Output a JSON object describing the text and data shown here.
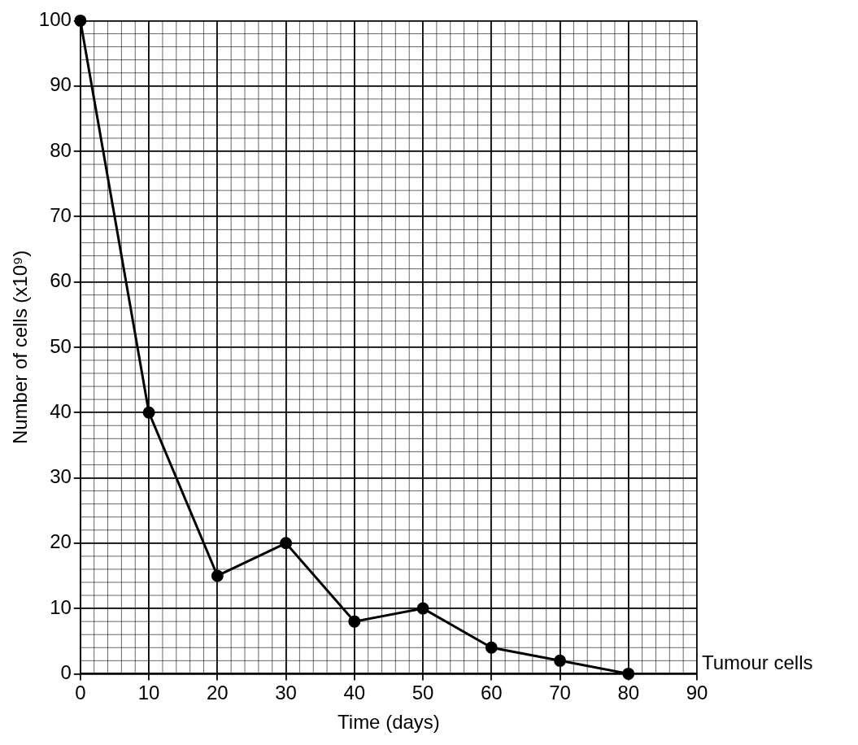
{
  "chart_data": {
    "type": "line",
    "xlabel": "Time (days)",
    "ylabel": "Number of cells (x10⁹)",
    "x": [
      0,
      10,
      20,
      30,
      40,
      50,
      60,
      70,
      80
    ],
    "series": [
      {
        "name": "Tumour cells",
        "color": "#000000",
        "values": [
          100,
          40,
          15,
          20,
          8,
          10,
          4,
          2,
          0
        ]
      }
    ],
    "xlim": [
      0,
      90
    ],
    "xticks": [
      0,
      10,
      20,
      30,
      40,
      50,
      60,
      70,
      80,
      90
    ],
    "ylim": [
      0,
      100
    ],
    "yticks": [
      0,
      10,
      20,
      30,
      40,
      50,
      60,
      70,
      80,
      90,
      100
    ],
    "grid": true,
    "legend": false,
    "marker": "circle",
    "line_style": "solid"
  }
}
